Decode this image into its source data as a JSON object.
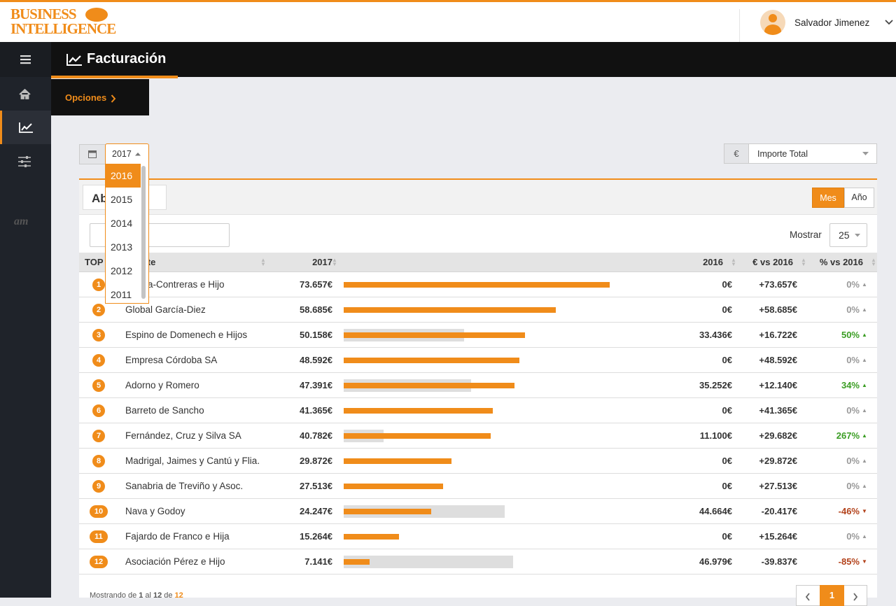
{
  "header": {
    "logo_line1": "BUSINESS",
    "logo_line2": "INTELLIGENCE",
    "user": "Salvador Jimenez"
  },
  "sidebar": {
    "brand": "am"
  },
  "page_title": "Facturación",
  "options": "Opciones",
  "year_select": {
    "selected": "2017",
    "options": [
      "2016",
      "2015",
      "2014",
      "2013",
      "2012",
      "2011"
    ]
  },
  "measure_select": {
    "prefix": "€",
    "selected": "Importe Total"
  },
  "panel": {
    "title": "Ab",
    "toggle": [
      "Mes",
      "Año"
    ],
    "show_label": "Mostrar",
    "page_size": "25"
  },
  "table": {
    "columns": [
      "TOP",
      "Cliente",
      "2017",
      "2016",
      "€ vs 2016",
      "% vs 2016"
    ],
    "rows": [
      {
        "rank": 1,
        "name": "Villaca-Contreras e Hijo",
        "y2017": {
          "value": 73657,
          "label": "73.657€"
        },
        "y2016": {
          "value": 0,
          "label": "0€"
        },
        "diff": "+73.657€",
        "pct": {
          "value": 0,
          "label": "0%"
        }
      },
      {
        "rank": 2,
        "name": "Global García-Diez",
        "y2017": {
          "value": 58685,
          "label": "58.685€"
        },
        "y2016": {
          "value": 0,
          "label": "0€"
        },
        "diff": "+58.685€",
        "pct": {
          "value": 0,
          "label": "0%"
        }
      },
      {
        "rank": 3,
        "name": "Espino de Domenech e Hijos",
        "y2017": {
          "value": 50158,
          "label": "50.158€"
        },
        "y2016": {
          "value": 33436,
          "label": "33.436€"
        },
        "diff": "+16.722€",
        "pct": {
          "value": 50,
          "label": "50%"
        }
      },
      {
        "rank": 4,
        "name": "Empresa Córdoba SA",
        "y2017": {
          "value": 48592,
          "label": "48.592€"
        },
        "y2016": {
          "value": 0,
          "label": "0€"
        },
        "diff": "+48.592€",
        "pct": {
          "value": 0,
          "label": "0%"
        }
      },
      {
        "rank": 5,
        "name": "Adorno y Romero",
        "y2017": {
          "value": 47391,
          "label": "47.391€"
        },
        "y2016": {
          "value": 35252,
          "label": "35.252€"
        },
        "diff": "+12.140€",
        "pct": {
          "value": 34,
          "label": "34%"
        }
      },
      {
        "rank": 6,
        "name": "Barreto de Sancho",
        "y2017": {
          "value": 41365,
          "label": "41.365€"
        },
        "y2016": {
          "value": 0,
          "label": "0€"
        },
        "diff": "+41.365€",
        "pct": {
          "value": 0,
          "label": "0%"
        }
      },
      {
        "rank": 7,
        "name": "Fernández, Cruz y Silva SA",
        "y2017": {
          "value": 40782,
          "label": "40.782€"
        },
        "y2016": {
          "value": 11100,
          "label": "11.100€"
        },
        "diff": "+29.682€",
        "pct": {
          "value": 267,
          "label": "267%"
        }
      },
      {
        "rank": 8,
        "name": "Madrigal, Jaimes y Cantú y Flia.",
        "y2017": {
          "value": 29872,
          "label": "29.872€"
        },
        "y2016": {
          "value": 0,
          "label": "0€"
        },
        "diff": "+29.872€",
        "pct": {
          "value": 0,
          "label": "0%"
        }
      },
      {
        "rank": 9,
        "name": "Sanabria de Treviño y Asoc.",
        "y2017": {
          "value": 27513,
          "label": "27.513€"
        },
        "y2016": {
          "value": 0,
          "label": "0€"
        },
        "diff": "+27.513€",
        "pct": {
          "value": 0,
          "label": "0%"
        }
      },
      {
        "rank": 10,
        "name": "Nava y Godoy",
        "y2017": {
          "value": 24247,
          "label": "24.247€"
        },
        "y2016": {
          "value": 44664,
          "label": "44.664€"
        },
        "diff": "-20.417€",
        "pct": {
          "value": -46,
          "label": "-46%"
        }
      },
      {
        "rank": 11,
        "name": "Fajardo de Franco e Hija",
        "y2017": {
          "value": 15264,
          "label": "15.264€"
        },
        "y2016": {
          "value": 0,
          "label": "0€"
        },
        "diff": "+15.264€",
        "pct": {
          "value": 0,
          "label": "0%"
        }
      },
      {
        "rank": 12,
        "name": "Asociación Pérez e Hijo",
        "y2017": {
          "value": 7141,
          "label": "7.141€"
        },
        "y2016": {
          "value": 46979,
          "label": "46.979€"
        },
        "diff": "-39.837€",
        "pct": {
          "value": -85,
          "label": "-85%"
        }
      }
    ]
  },
  "footer": {
    "parts": [
      "Mostrando de",
      "1",
      "al",
      "12",
      "de",
      "12"
    ],
    "page": "1"
  }
}
